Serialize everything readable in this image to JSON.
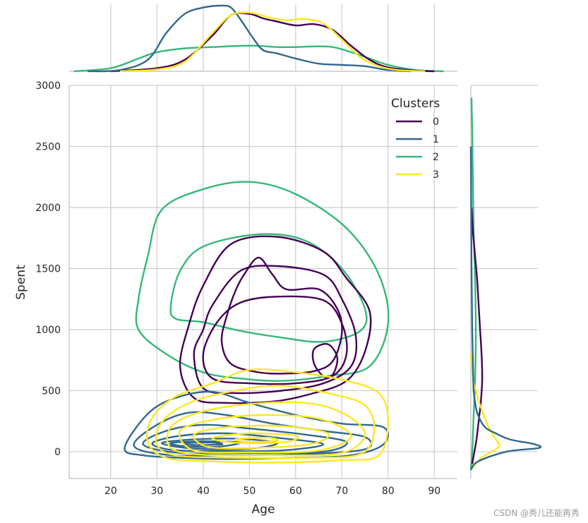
{
  "chart_data": {
    "type": "kde-jointplot",
    "xlabel": "Age",
    "ylabel": "Spent",
    "xlim": [
      11,
      95
    ],
    "ylim": [
      -220,
      3000
    ],
    "x_ticks": [
      20,
      30,
      40,
      50,
      60,
      70,
      80,
      90
    ],
    "y_ticks": [
      0,
      500,
      1000,
      1500,
      2000,
      2500,
      3000
    ],
    "grid": true,
    "legend": {
      "title": "Clusters",
      "position": "top-right",
      "entries": [
        "0",
        "1",
        "2",
        "3"
      ]
    },
    "series": [
      {
        "name": "0",
        "color": "#440154",
        "contours": [
          [
            [
              40,
              1360
            ],
            [
              46,
              1700
            ],
            [
              56,
              1760
            ],
            [
              66,
              1640
            ],
            [
              71,
              1420
            ],
            [
              76,
              1150
            ],
            [
              75,
              820
            ],
            [
              71,
              580
            ],
            [
              63,
              470
            ],
            [
              55,
              410
            ],
            [
              45,
              400
            ],
            [
              38,
              440
            ],
            [
              35,
              700
            ],
            [
              37,
              1050
            ]
          ],
          [
            [
              42,
              1200
            ],
            [
              48,
              1480
            ],
            [
              56,
              1520
            ],
            [
              66,
              1450
            ],
            [
              70,
              1250
            ],
            [
              73,
              950
            ],
            [
              72,
              700
            ],
            [
              66,
              560
            ],
            [
              57,
              500
            ],
            [
              47,
              480
            ],
            [
              40,
              520
            ],
            [
              38,
              800
            ],
            [
              40,
              1000
            ]
          ],
          [
            [
              43,
              1060
            ],
            [
              48,
              1220
            ],
            [
              56,
              1270
            ],
            [
              66,
              1240
            ],
            [
              70,
              1050
            ],
            [
              71,
              800
            ],
            [
              68,
              620
            ],
            [
              60,
              560
            ],
            [
              50,
              560
            ],
            [
              42,
              600
            ],
            [
              40,
              800
            ]
          ],
          [
            [
              47,
              1320
            ],
            [
              49,
              1460
            ],
            [
              52,
              1590
            ],
            [
              55,
              1450
            ],
            [
              58,
              1330
            ],
            [
              65,
              1330
            ],
            [
              69,
              1170
            ],
            [
              70,
              970
            ],
            [
              68,
              740
            ],
            [
              64,
              660
            ],
            [
              58,
              640
            ],
            [
              52,
              650
            ],
            [
              46,
              720
            ],
            [
              44,
              900
            ],
            [
              45,
              1100
            ]
          ],
          [
            [
              64,
              840
            ],
            [
              67,
              880
            ],
            [
              69,
              770
            ],
            [
              68,
              630
            ],
            [
              66,
              620
            ],
            [
              64,
              720
            ]
          ]
        ]
      },
      {
        "name": "1",
        "color": "#31688e",
        "contours": [
          [
            [
              23,
              30
            ],
            [
              28,
              310
            ],
            [
              34,
              440
            ],
            [
              42,
              490
            ],
            [
              50,
              400
            ],
            [
              60,
              300
            ],
            [
              70,
              230
            ],
            [
              79,
              200
            ],
            [
              79,
              60
            ],
            [
              72,
              -30
            ],
            [
              60,
              -50
            ],
            [
              45,
              -60
            ],
            [
              35,
              -50
            ],
            [
              27,
              -30
            ]
          ],
          [
            [
              25,
              50
            ],
            [
              30,
              220
            ],
            [
              37,
              320
            ],
            [
              45,
              300
            ],
            [
              55,
              230
            ],
            [
              66,
              170
            ],
            [
              75,
              120
            ],
            [
              75,
              20
            ],
            [
              62,
              -20
            ],
            [
              45,
              -30
            ],
            [
              32,
              -25
            ]
          ],
          [
            [
              27,
              60
            ],
            [
              32,
              170
            ],
            [
              40,
              220
            ],
            [
              50,
              190
            ],
            [
              62,
              140
            ],
            [
              71,
              80
            ],
            [
              66,
              0
            ],
            [
              50,
              -10
            ],
            [
              35,
              -10
            ]
          ],
          [
            [
              29,
              70
            ],
            [
              35,
              130
            ],
            [
              45,
              150
            ],
            [
              57,
              110
            ],
            [
              66,
              60
            ],
            [
              57,
              10
            ],
            [
              42,
              5
            ],
            [
              33,
              15
            ]
          ],
          [
            [
              31,
              70
            ],
            [
              38,
              100
            ],
            [
              48,
              105
            ],
            [
              56,
              70
            ],
            [
              50,
              25
            ],
            [
              38,
              25
            ]
          ],
          [
            [
              33,
              70
            ],
            [
              40,
              85
            ],
            [
              48,
              75
            ],
            [
              43,
              40
            ],
            [
              36,
              45
            ]
          ],
          [
            [
              36,
              70
            ],
            [
              42,
              75
            ],
            [
              44,
              60
            ],
            [
              38,
              55
            ]
          ]
        ]
      },
      {
        "name": "2",
        "color": "#35b779",
        "contours": [
          [
            [
              26,
              1250
            ],
            [
              28,
              1600
            ],
            [
              31,
              1980
            ],
            [
              40,
              2150
            ],
            [
              50,
              2210
            ],
            [
              60,
              2110
            ],
            [
              71,
              1830
            ],
            [
              78,
              1450
            ],
            [
              80,
              1050
            ],
            [
              76,
              700
            ],
            [
              67,
              620
            ],
            [
              57,
              580
            ],
            [
              48,
              600
            ],
            [
              40,
              650
            ],
            [
              32,
              800
            ],
            [
              26,
              1000
            ]
          ],
          [
            [
              33,
              1200
            ],
            [
              35,
              1480
            ],
            [
              40,
              1680
            ],
            [
              52,
              1780
            ],
            [
              62,
              1730
            ],
            [
              70,
              1500
            ],
            [
              75,
              1170
            ],
            [
              74,
              990
            ],
            [
              66,
              900
            ],
            [
              56,
              940
            ],
            [
              48,
              990
            ],
            [
              40,
              1060
            ],
            [
              34,
              1090
            ]
          ]
        ]
      },
      {
        "name": "3",
        "color": "#fde725",
        "contours": [
          [
            [
              29,
              280
            ],
            [
              34,
              450
            ],
            [
              42,
              560
            ],
            [
              50,
              670
            ],
            [
              60,
              650
            ],
            [
              70,
              590
            ],
            [
              78,
              480
            ],
            [
              80,
              250
            ],
            [
              78,
              -30
            ],
            [
              70,
              -70
            ],
            [
              55,
              -90
            ],
            [
              42,
              -80
            ],
            [
              32,
              -50
            ],
            [
              28,
              80
            ]
          ],
          [
            [
              31,
              240
            ],
            [
              37,
              400
            ],
            [
              47,
              500
            ],
            [
              57,
              540
            ],
            [
              68,
              470
            ],
            [
              75,
              380
            ],
            [
              77,
              180
            ],
            [
              74,
              -20
            ],
            [
              62,
              -50
            ],
            [
              46,
              -50
            ],
            [
              34,
              -30
            ],
            [
              30,
              60
            ]
          ],
          [
            [
              33,
              200
            ],
            [
              39,
              320
            ],
            [
              50,
              390
            ],
            [
              62,
              400
            ],
            [
              70,
              320
            ],
            [
              75,
              150
            ],
            [
              70,
              -10
            ],
            [
              55,
              -30
            ],
            [
              40,
              -25
            ],
            [
              33,
              30
            ]
          ],
          [
            [
              35,
              170
            ],
            [
              42,
              260
            ],
            [
              53,
              300
            ],
            [
              65,
              270
            ],
            [
              72,
              130
            ],
            [
              65,
              10
            ],
            [
              50,
              -5
            ],
            [
              38,
              10
            ]
          ],
          [
            [
              38,
              140
            ],
            [
              45,
              200
            ],
            [
              57,
              210
            ],
            [
              67,
              150
            ],
            [
              63,
              60
            ],
            [
              50,
              30
            ],
            [
              41,
              40
            ]
          ],
          [
            [
              42,
              110
            ],
            [
              50,
              150
            ],
            [
              60,
              130
            ],
            [
              58,
              80
            ],
            [
              48,
              70
            ]
          ],
          [
            [
              47,
              100
            ],
            [
              54,
              115
            ],
            [
              56,
              90
            ],
            [
              50,
              80
            ]
          ]
        ]
      }
    ],
    "marginal_age": [
      {
        "name": "0",
        "color": "#440154",
        "x": [
          20,
          30,
          36,
          42,
          46,
          50,
          53,
          56,
          60,
          64,
          68,
          72,
          76,
          80,
          86,
          90
        ],
        "y": [
          0.0,
          0.05,
          0.18,
          0.56,
          0.88,
          0.9,
          0.83,
          0.78,
          0.72,
          0.74,
          0.65,
          0.4,
          0.18,
          0.06,
          0.01,
          0.0
        ]
      },
      {
        "name": "1",
        "color": "#31688e",
        "x": [
          15,
          22,
          28,
          32,
          36,
          40,
          44,
          46,
          48,
          51,
          53,
          56,
          60,
          65,
          70,
          75,
          80,
          85
        ],
        "y": [
          0.0,
          0.02,
          0.18,
          0.6,
          0.9,
          1.0,
          1.03,
          1.0,
          0.82,
          0.5,
          0.33,
          0.28,
          0.2,
          0.12,
          0.1,
          0.08,
          0.02,
          0.0
        ]
      },
      {
        "name": "2",
        "color": "#35b779",
        "x": [
          12,
          20,
          26,
          30,
          36,
          42,
          48,
          52,
          56,
          60,
          64,
          68,
          72,
          76,
          80,
          86,
          92
        ],
        "y": [
          0.0,
          0.05,
          0.2,
          0.3,
          0.36,
          0.38,
          0.4,
          0.4,
          0.38,
          0.38,
          0.39,
          0.38,
          0.3,
          0.2,
          0.1,
          0.02,
          0.0
        ]
      },
      {
        "name": "3",
        "color": "#fde725",
        "x": [
          22,
          30,
          36,
          42,
          46,
          50,
          54,
          58,
          62,
          66,
          70,
          74,
          78,
          82,
          88
        ],
        "y": [
          0.0,
          0.03,
          0.15,
          0.6,
          0.88,
          0.92,
          0.85,
          0.8,
          0.82,
          0.75,
          0.5,
          0.22,
          0.08,
          0.02,
          0.0
        ]
      }
    ],
    "marginal_spent": [
      {
        "name": "0",
        "color": "#440154",
        "y": [
          -100,
          0,
          100,
          200,
          300,
          400,
          600,
          800,
          1000,
          1200,
          1400,
          1600,
          1800,
          2000
        ],
        "d": [
          0.02,
          0.05,
          0.08,
          0.1,
          0.12,
          0.14,
          0.16,
          0.15,
          0.13,
          0.11,
          0.09,
          0.06,
          0.03,
          0.01
        ]
      },
      {
        "name": "1",
        "color": "#31688e",
        "y": [
          -150,
          -80,
          0,
          30,
          60,
          100,
          150,
          200,
          300,
          400,
          500,
          700,
          1000,
          1500,
          2500
        ],
        "d": [
          0.0,
          0.1,
          0.5,
          0.95,
          0.9,
          0.55,
          0.35,
          0.2,
          0.1,
          0.06,
          0.04,
          0.03,
          0.02,
          0.01,
          0.0
        ]
      },
      {
        "name": "2",
        "color": "#35b779",
        "y": [
          -150,
          0,
          300,
          600,
          1000,
          1400,
          1800,
          2200,
          2600,
          2900
        ],
        "d": [
          0.0,
          0.02,
          0.04,
          0.06,
          0.07,
          0.06,
          0.04,
          0.03,
          0.02,
          0.01
        ]
      },
      {
        "name": "3",
        "color": "#fde725",
        "y": [
          -150,
          -50,
          0,
          50,
          100,
          200,
          300,
          400,
          500,
          600,
          800
        ],
        "d": [
          0.0,
          0.15,
          0.3,
          0.4,
          0.35,
          0.25,
          0.18,
          0.12,
          0.07,
          0.03,
          0.0
        ]
      }
    ]
  },
  "watermark": "CSDN @秀儿还能再秀"
}
